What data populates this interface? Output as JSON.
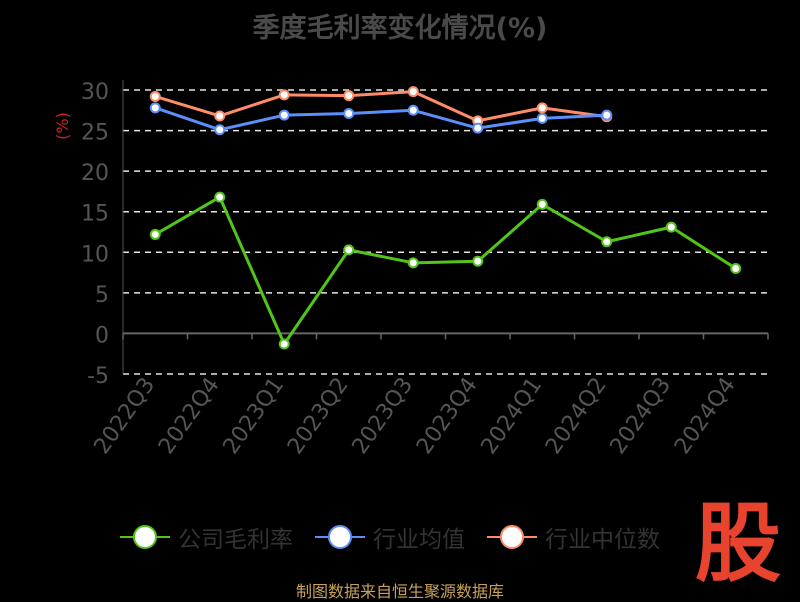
{
  "chart_data": {
    "type": "line",
    "title": "季度毛利率变化情况(%)",
    "ylabel": "(%)",
    "xlabel": "",
    "categories": [
      "2022Q3",
      "2022Q4",
      "2023Q1",
      "2023Q2",
      "2023Q3",
      "2023Q4",
      "2024Q1",
      "2024Q2",
      "2024Q3",
      "2024Q4"
    ],
    "yticks": [
      30,
      25,
      20,
      15,
      10,
      5,
      0,
      -5
    ],
    "ylim": [
      -5,
      30
    ],
    "grid": true,
    "legend_position": "bottom",
    "series": [
      {
        "name": "公司毛利率",
        "color": "#52c41a",
        "values": [
          12.2,
          16.8,
          -1.3,
          10.3,
          8.7,
          8.9,
          15.9,
          11.3,
          13.1,
          8.0
        ]
      },
      {
        "name": "行业均值",
        "color": "#5b8ff9",
        "values": [
          27.8,
          25.1,
          26.9,
          27.1,
          27.5,
          25.3,
          26.5,
          26.9,
          null,
          null
        ]
      },
      {
        "name": "行业中位数",
        "color": "#ff8c69",
        "values": [
          29.2,
          26.8,
          29.4,
          29.3,
          29.8,
          26.2,
          27.8,
          26.7,
          null,
          null
        ]
      }
    ]
  },
  "watermark": {
    "text": "股"
  },
  "source": "制图数据来自恒生聚源数据库"
}
